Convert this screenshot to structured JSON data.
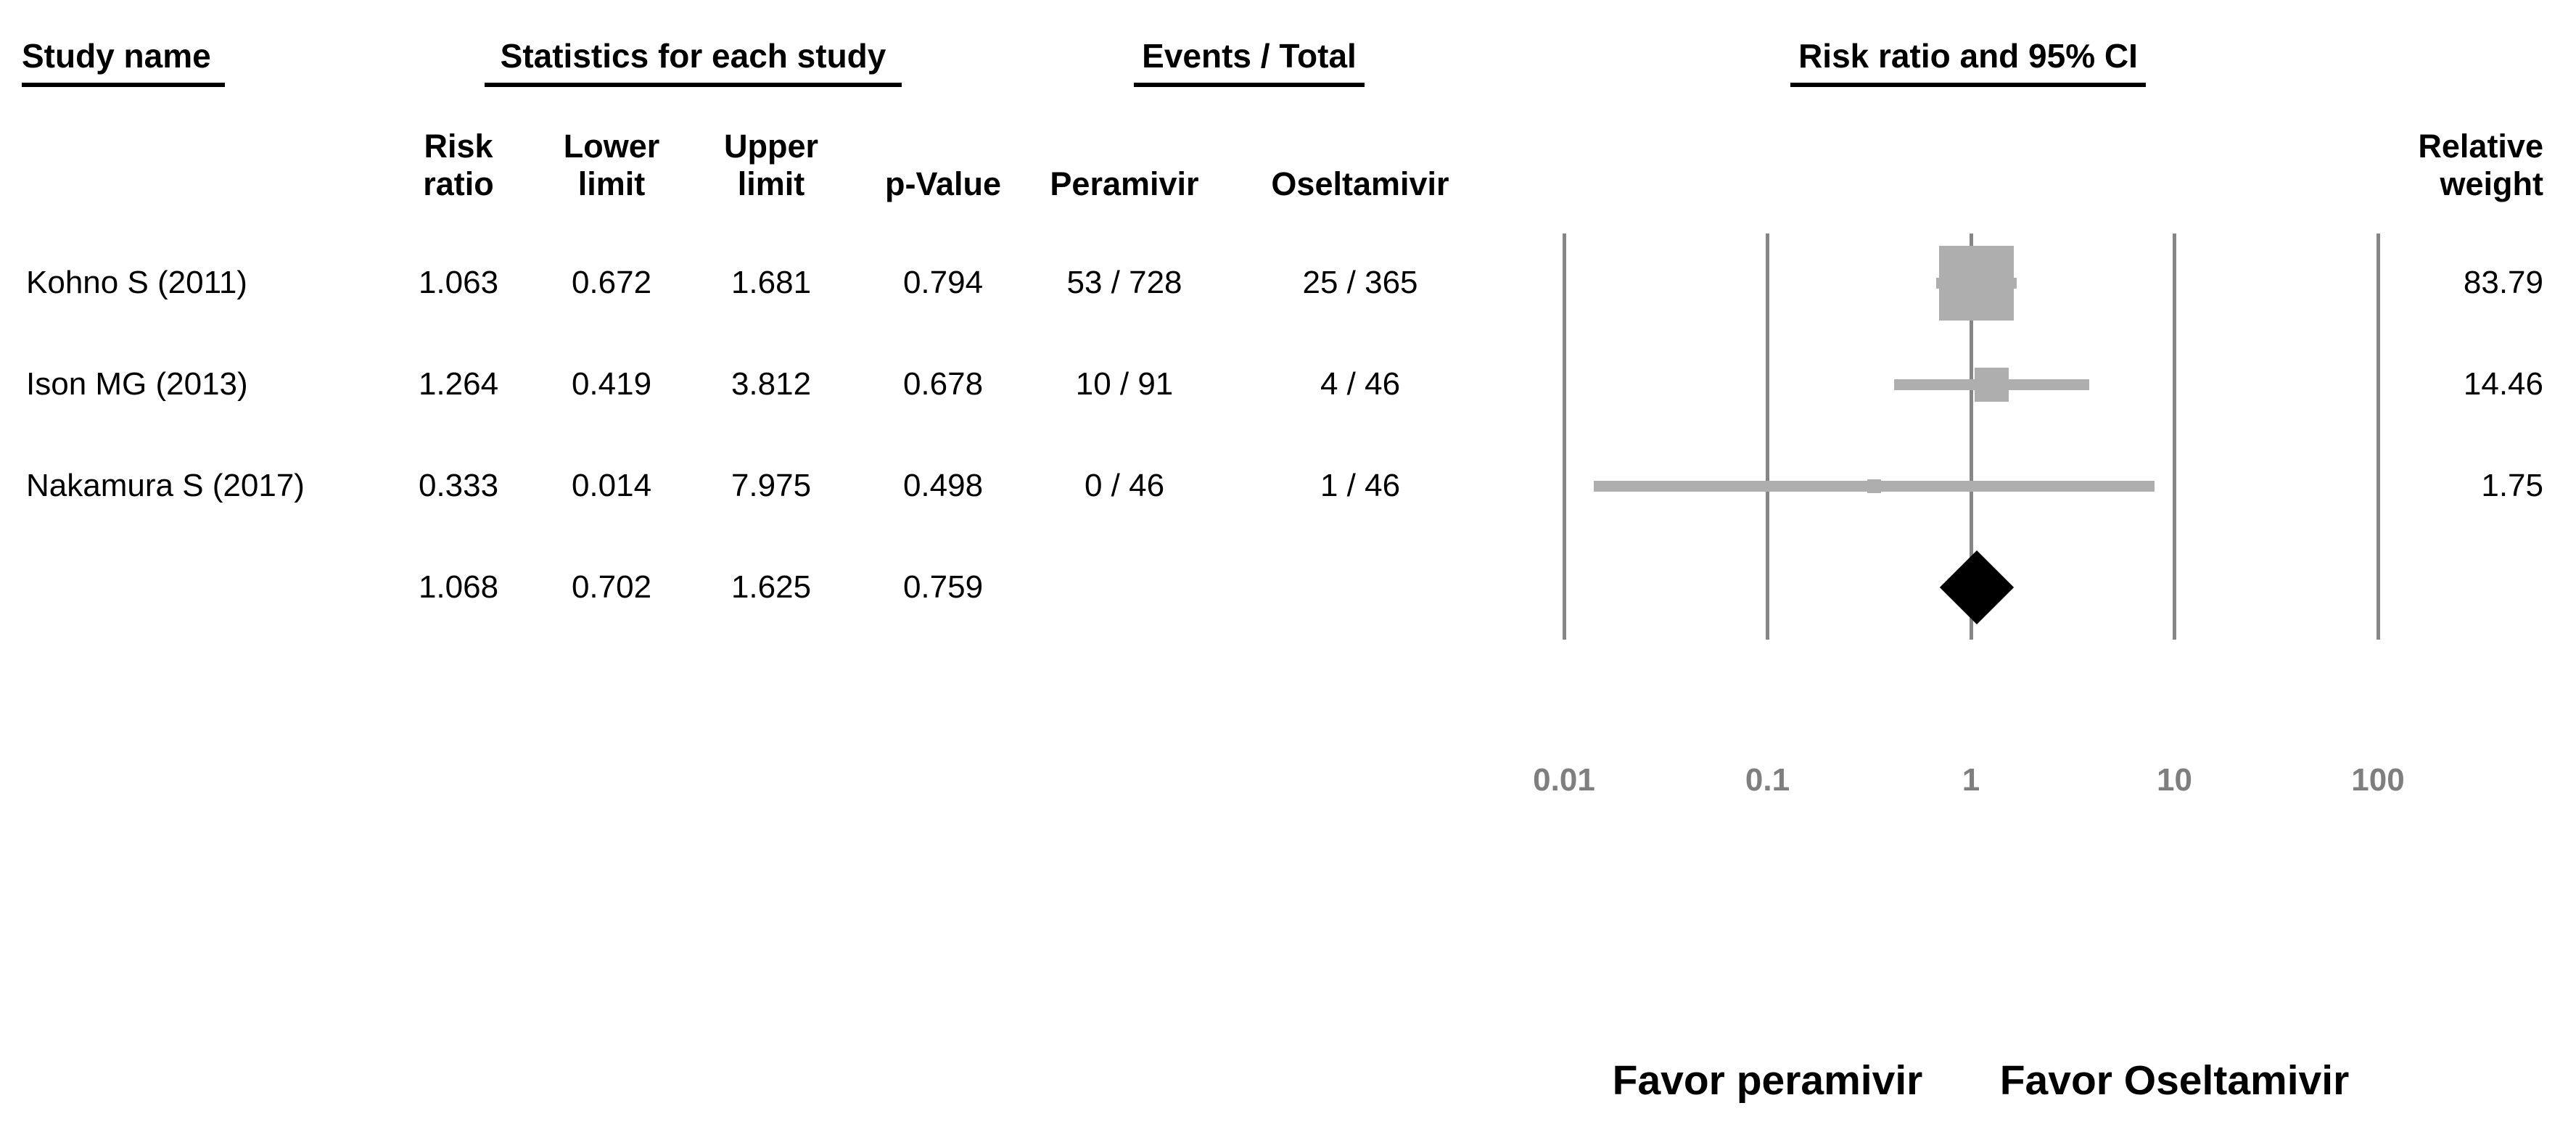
{
  "group_headers": {
    "study_name": "Study name",
    "statistics": "Statistics for each study",
    "events_total": "Events / Total",
    "risk_ratio_ci": "Risk ratio and 95% CI"
  },
  "column_headers": {
    "risk_ratio": "Risk ratio",
    "lower_limit": "Lower limit",
    "upper_limit": "Upper limit",
    "p_value": "p-Value",
    "peramivir": "Peramivir",
    "oseltamivir": "Oseltamivir",
    "relative_weight": "Relative weight"
  },
  "rows": [
    {
      "study": "Kohno S (2011)",
      "risk_ratio": "1.063",
      "lower": "0.672",
      "upper": "1.681",
      "p_value": "0.794",
      "peramivir": "53 / 728",
      "oseltamivir": "25 / 365",
      "weight": "83.79"
    },
    {
      "study": "Ison MG (2013)",
      "risk_ratio": "1.264",
      "lower": "0.419",
      "upper": "3.812",
      "p_value": "0.678",
      "peramivir": "10 / 91",
      "oseltamivir": "4 / 46",
      "weight": "14.46"
    },
    {
      "study": "Nakamura S (2017)",
      "risk_ratio": "0.333",
      "lower": "0.014",
      "upper": "7.975",
      "p_value": "0.498",
      "peramivir": "0 / 46",
      "oseltamivir": "1 / 46",
      "weight": "1.75"
    },
    {
      "study": "",
      "risk_ratio": "1.068",
      "lower": "0.702",
      "upper": "1.625",
      "p_value": "0.759",
      "peramivir": "",
      "oseltamivir": "",
      "weight": ""
    }
  ],
  "chart_data": {
    "type": "forest",
    "x_axis": {
      "scale": "log10",
      "range": [
        0.01,
        100
      ],
      "ticks": [
        0.01,
        0.1,
        1,
        10,
        100
      ],
      "tick_labels": [
        "0.01",
        "0.1",
        "1",
        "10",
        "100"
      ],
      "grid": "vertical-lines"
    },
    "studies": [
      {
        "name": "Kohno S (2011)",
        "risk_ratio": 1.063,
        "lower": 0.672,
        "upper": 1.681,
        "p_value": 0.794,
        "peramivir_events": "53 / 728",
        "oseltamivir_events": "25 / 365",
        "relative_weight": 83.79,
        "marker_px": 103
      },
      {
        "name": "Ison MG (2013)",
        "risk_ratio": 1.264,
        "lower": 0.419,
        "upper": 3.812,
        "p_value": 0.678,
        "peramivir_events": "10 / 91",
        "oseltamivir_events": "4 / 46",
        "relative_weight": 14.46,
        "marker_px": 47
      },
      {
        "name": "Nakamura S (2017)",
        "risk_ratio": 0.333,
        "lower": 0.014,
        "upper": 7.975,
        "p_value": 0.498,
        "peramivir_events": "0 / 46",
        "oseltamivir_events": "1 / 46",
        "relative_weight": 1.75,
        "marker_px": 19
      }
    ],
    "summary": {
      "risk_ratio": 1.068,
      "lower": 0.702,
      "upper": 1.625,
      "p_value": 0.759
    },
    "footer_labels": {
      "left": "Favor peramivir",
      "right": "Favor Oseltamivir"
    },
    "colors": {
      "marker": "#aeaeae",
      "ci_line": "#aeaeae",
      "gridline": "#868686",
      "tick_label": "#7f7f7f",
      "summary_diamond": "#000000",
      "text": "#000000"
    },
    "legend_position": "none",
    "title": ""
  }
}
